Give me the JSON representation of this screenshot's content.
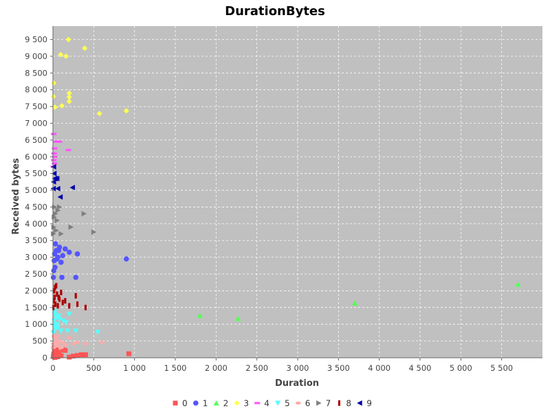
{
  "chart_data": {
    "type": "scatter",
    "title": "DurationBytes",
    "xlabel": "Duration",
    "ylabel": "Received bytes",
    "xlim": [
      0,
      6000
    ],
    "ylim": [
      0,
      9900
    ],
    "xticks": [
      0,
      500,
      1000,
      1500,
      2000,
      2500,
      3000,
      3500,
      4000,
      4500,
      5000,
      5500
    ],
    "xtick_labels": [
      "0",
      "500",
      "1 000",
      "1 500",
      "2 000",
      "2 500",
      "3 000",
      "3 500",
      "4 000",
      "4 500",
      "5 000",
      "5 500"
    ],
    "yticks": [
      0,
      500,
      1000,
      1500,
      2000,
      2500,
      3000,
      3500,
      4000,
      4500,
      5000,
      5500,
      6000,
      6500,
      7000,
      7500,
      8000,
      8500,
      9000,
      9500
    ],
    "ytick_labels": [
      "0",
      "500",
      "1 000",
      "1 500",
      "2 000",
      "2 500",
      "3 000",
      "3 500",
      "4 000",
      "4 500",
      "5 000",
      "5 500",
      "6 000",
      "6 500",
      "7 000",
      "7 500",
      "8 000",
      "8 500",
      "9 000",
      "9 500"
    ],
    "grid": true,
    "legend_position": "bottom",
    "background": "#c0c0c0",
    "series": [
      {
        "name": "0",
        "color": "#ff5555",
        "marker": "square",
        "x": [
          5,
          10,
          20,
          30,
          40,
          60,
          80,
          100,
          150,
          200,
          250,
          300,
          350,
          400,
          930,
          15,
          25,
          50,
          120
        ],
        "y": [
          40,
          120,
          200,
          80,
          260,
          30,
          150,
          60,
          220,
          20,
          50,
          70,
          90,
          90,
          120,
          300,
          10,
          180,
          240
        ]
      },
      {
        "name": "1",
        "color": "#5555ff",
        "marker": "circle",
        "x": [
          5,
          10,
          15,
          20,
          30,
          40,
          50,
          60,
          80,
          100,
          120,
          150,
          200,
          280,
          300,
          900,
          25,
          70,
          110
        ],
        "y": [
          2400,
          2600,
          2900,
          3100,
          3400,
          3200,
          2950,
          3000,
          3300,
          2850,
          3050,
          3250,
          3150,
          2400,
          3100,
          2950,
          2700,
          3200,
          2400
        ]
      },
      {
        "name": "2",
        "color": "#55ff55",
        "marker": "triangle-up",
        "x": [
          1800,
          2270,
          3700,
          5700
        ],
        "y": [
          1260,
          1170,
          1630,
          2190
        ]
      },
      {
        "name": "3",
        "color": "#ffff55",
        "marker": "diamond",
        "x": [
          5,
          10,
          25,
          95,
          110,
          160,
          190,
          200,
          200,
          200,
          390,
          570,
          900
        ],
        "y": [
          7800,
          8200,
          7480,
          9050,
          7520,
          9000,
          9500,
          7900,
          7650,
          7780,
          9240,
          7290,
          7370
        ]
      },
      {
        "name": "4",
        "color": "#ff55ff",
        "marker": "hbar",
        "x": [
          5,
          10,
          15,
          20,
          25,
          30,
          40,
          60,
          80,
          190,
          10,
          20
        ],
        "y": [
          5700,
          5900,
          6100,
          6250,
          6000,
          6450,
          6450,
          6450,
          6450,
          6200,
          6680,
          5800
        ]
      },
      {
        "name": "5",
        "color": "#55ffff",
        "marker": "triangle-down",
        "x": [
          5,
          10,
          15,
          20,
          30,
          40,
          50,
          60,
          80,
          100,
          130,
          160,
          180,
          200,
          280,
          550,
          25,
          70
        ],
        "y": [
          750,
          950,
          1100,
          1300,
          850,
          1200,
          1000,
          900,
          1150,
          800,
          1100,
          1050,
          800,
          1300,
          800,
          760,
          1400,
          1250
        ]
      },
      {
        "name": "6",
        "color": "#ffaaaa",
        "marker": "ellipse",
        "x": [
          5,
          10,
          20,
          30,
          40,
          50,
          60,
          80,
          100,
          120,
          150,
          200,
          250,
          300,
          400,
          600,
          15,
          70
        ],
        "y": [
          300,
          420,
          600,
          500,
          350,
          450,
          650,
          520,
          300,
          450,
          380,
          600,
          420,
          460,
          420,
          460,
          650,
          350
        ]
      },
      {
        "name": "7",
        "color": "#808080",
        "marker": "triangle-right",
        "x": [
          5,
          10,
          15,
          20,
          30,
          40,
          50,
          60,
          80,
          100,
          220,
          380,
          500
        ],
        "y": [
          3700,
          3900,
          4200,
          4500,
          4300,
          3800,
          4100,
          4400,
          4500,
          3700,
          3900,
          4300,
          3750
        ]
      },
      {
        "name": "8",
        "color": "#aa0000",
        "marker": "vbar",
        "x": [
          5,
          10,
          15,
          20,
          30,
          40,
          50,
          60,
          80,
          100,
          120,
          150,
          200,
          280,
          300,
          400,
          25,
          70
        ],
        "y": [
          1500,
          1700,
          2000,
          1800,
          1600,
          2150,
          1900,
          1550,
          1750,
          1950,
          1650,
          1700,
          1550,
          1850,
          1600,
          1500,
          2100,
          1800
        ]
      },
      {
        "name": "9",
        "color": "#0000aa",
        "marker": "triangle-left",
        "x": [
          5,
          8,
          10,
          15,
          20,
          30,
          50,
          60,
          90,
          240
        ],
        "y": [
          5050,
          5250,
          5700,
          5500,
          5350,
          5350,
          5350,
          5050,
          4800,
          5080
        ]
      }
    ]
  }
}
